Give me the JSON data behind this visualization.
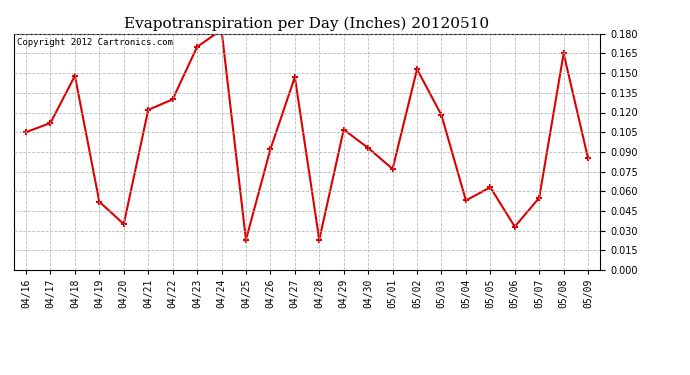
{
  "title": "Evapotranspiration per Day (Inches) 20120510",
  "copyright_text": "Copyright 2012 Cartronics.com",
  "labels": [
    "04/16",
    "04/17",
    "04/18",
    "04/19",
    "04/20",
    "04/21",
    "04/22",
    "04/23",
    "04/24",
    "04/25",
    "04/26",
    "04/27",
    "04/28",
    "04/29",
    "04/30",
    "05/01",
    "05/02",
    "05/03",
    "05/04",
    "05/05",
    "05/06",
    "05/07",
    "05/08",
    "05/09"
  ],
  "values": [
    0.105,
    0.112,
    0.148,
    0.052,
    0.035,
    0.122,
    0.13,
    0.17,
    0.183,
    0.023,
    0.092,
    0.147,
    0.023,
    0.107,
    0.093,
    0.077,
    0.153,
    0.118,
    0.053,
    0.063,
    0.033,
    0.055,
    0.165,
    0.085
  ],
  "line_color": "#dd0000",
  "marker": "+",
  "marker_size": 5,
  "marker_edge_width": 1.5,
  "line_width": 1.5,
  "ylim": [
    0.0,
    0.18
  ],
  "yticks": [
    0.0,
    0.015,
    0.03,
    0.045,
    0.06,
    0.075,
    0.09,
    0.105,
    0.12,
    0.135,
    0.15,
    0.165,
    0.18
  ],
  "background_color": "#ffffff",
  "grid_color": "#aaaaaa",
  "title_fontsize": 11,
  "tick_fontsize": 7,
  "copyright_fontsize": 6.5,
  "fig_width": 6.9,
  "fig_height": 3.75,
  "fig_dpi": 100
}
